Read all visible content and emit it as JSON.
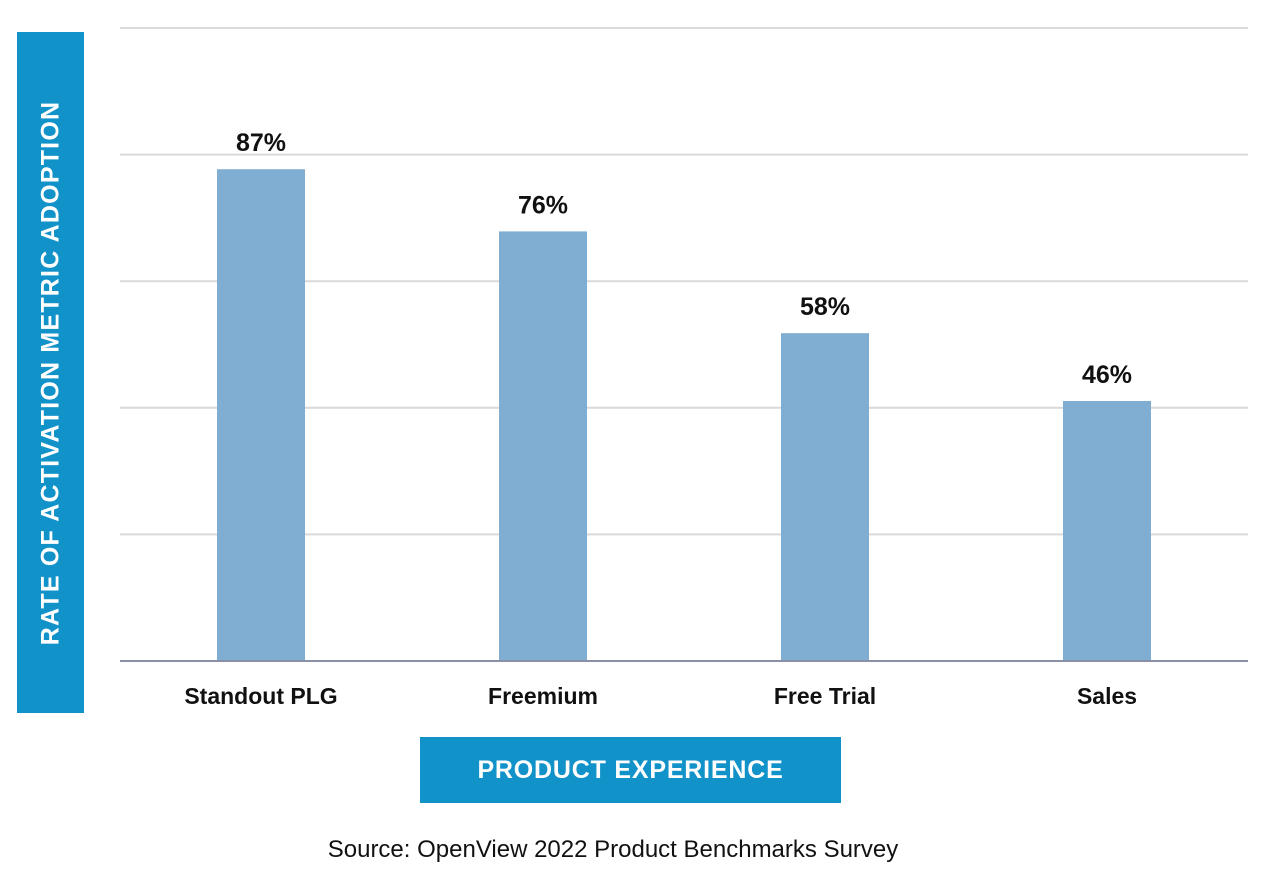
{
  "chart_data": {
    "type": "bar",
    "categories": [
      "Standout PLG",
      "Freemium",
      "Free Trial",
      "Sales"
    ],
    "values": [
      87,
      76,
      58,
      46
    ],
    "value_labels": [
      "87%",
      "76%",
      "58%",
      "46%"
    ],
    "xlabel": "PRODUCT EXPERIENCE",
    "ylabel": "RATE OF ACTIVATION METRIC ADOPTION",
    "ylim": [
      0,
      100
    ],
    "grid": true,
    "bar_color": "#7faed2",
    "label_box_color": "#1192c9"
  },
  "source": "Source: OpenView 2022 Product Benchmarks Survey"
}
